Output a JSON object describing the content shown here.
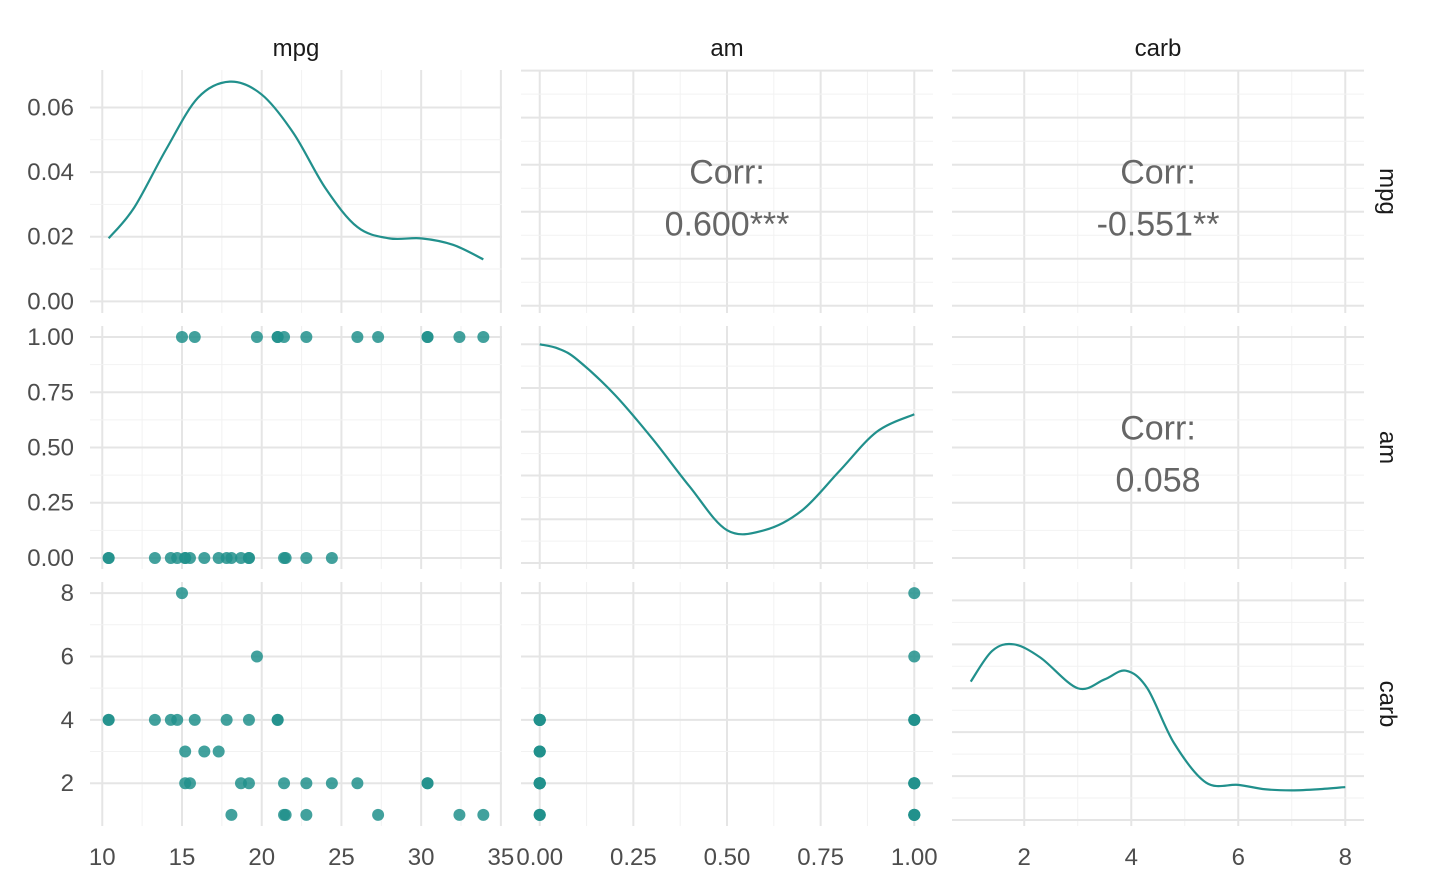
{
  "chart_data": {
    "type": "scatter",
    "variables": [
      "mpg",
      "am",
      "carb"
    ],
    "colors": {
      "accent": "#21908C"
    },
    "axes": {
      "mpg": {
        "range": [
          9.23,
          35.07
        ],
        "ticks": [
          10,
          15,
          20,
          25,
          30,
          35
        ],
        "tick_labels": [
          "10",
          "15",
          "20",
          "25",
          "30",
          "35"
        ]
      },
      "am": {
        "range": [
          -0.05,
          1.05
        ],
        "ticks": [
          0,
          0.25,
          0.5,
          0.75,
          1
        ],
        "tick_labels": [
          "0.00",
          "0.25",
          "0.50",
          "0.75",
          "1.00"
        ]
      },
      "carb": {
        "range": [
          0.65,
          8.35
        ],
        "ticks": [
          2,
          4,
          6,
          8
        ],
        "tick_labels": [
          "2",
          "4",
          "6",
          "8"
        ]
      }
    },
    "density_axis": {
      "range": [
        -0.0036,
        0.0716
      ],
      "ticks": [
        0,
        0.02,
        0.04,
        0.06
      ],
      "tick_labels": [
        "0.00",
        "0.02",
        "0.04",
        "0.06"
      ]
    },
    "densities": {
      "mpg": {
        "x": [
          10.4,
          12,
          14,
          16,
          18,
          20,
          22,
          24,
          26,
          28,
          30,
          32,
          33.9
        ],
        "y": [
          0.0195,
          0.029,
          0.047,
          0.063,
          0.068,
          0.064,
          0.052,
          0.035,
          0.023,
          0.0195,
          0.0195,
          0.0175,
          0.013
        ]
      },
      "am": {
        "x": [
          0,
          0.05,
          0.1,
          0.2,
          0.3,
          0.4,
          0.5,
          0.6,
          0.7,
          0.8,
          0.9,
          1.0
        ],
        "y": [
          1.0,
          0.98,
          0.93,
          0.77,
          0.57,
          0.35,
          0.15,
          0.15,
          0.24,
          0.42,
          0.6,
          0.68
        ]
      },
      "carb": {
        "x": [
          1,
          1.4,
          1.8,
          2.3,
          3,
          3.5,
          3.9,
          4.3,
          4.8,
          5.4,
          6,
          6.5,
          7,
          7.5,
          8
        ],
        "y": [
          0.63,
          0.77,
          0.8,
          0.74,
          0.6,
          0.64,
          0.68,
          0.6,
          0.35,
          0.17,
          0.16,
          0.14,
          0.135,
          0.14,
          0.15
        ]
      }
    },
    "correlations": [
      {
        "row": "mpg",
        "col": "am",
        "label": "Corr:",
        "value": "0.600***"
      },
      {
        "row": "mpg",
        "col": "carb",
        "label": "Corr:",
        "value": "-0.551**"
      },
      {
        "row": "am",
        "col": "carb",
        "label": "Corr:",
        "value": "0.058"
      }
    ],
    "points": {
      "mpg": [
        21,
        21,
        22.8,
        21.4,
        18.7,
        18.1,
        14.3,
        24.4,
        22.8,
        19.2,
        17.8,
        16.4,
        17.3,
        15.2,
        10.4,
        10.4,
        14.7,
        32.4,
        30.4,
        33.9,
        21.5,
        15.5,
        15.2,
        13.3,
        19.2,
        27.3,
        26,
        30.4,
        15.8,
        19.7,
        15,
        21.4
      ],
      "am": [
        1,
        1,
        1,
        0,
        0,
        0,
        0,
        0,
        0,
        0,
        0,
        0,
        0,
        0,
        0,
        0,
        0,
        1,
        1,
        1,
        0,
        0,
        0,
        0,
        0,
        1,
        1,
        1,
        1,
        1,
        1,
        1
      ],
      "carb": [
        4,
        4,
        1,
        1,
        2,
        1,
        4,
        2,
        2,
        4,
        4,
        3,
        3,
        3,
        4,
        4,
        4,
        1,
        2,
        1,
        1,
        2,
        2,
        4,
        2,
        1,
        2,
        2,
        4,
        6,
        8,
        2
      ]
    },
    "grid": true
  }
}
